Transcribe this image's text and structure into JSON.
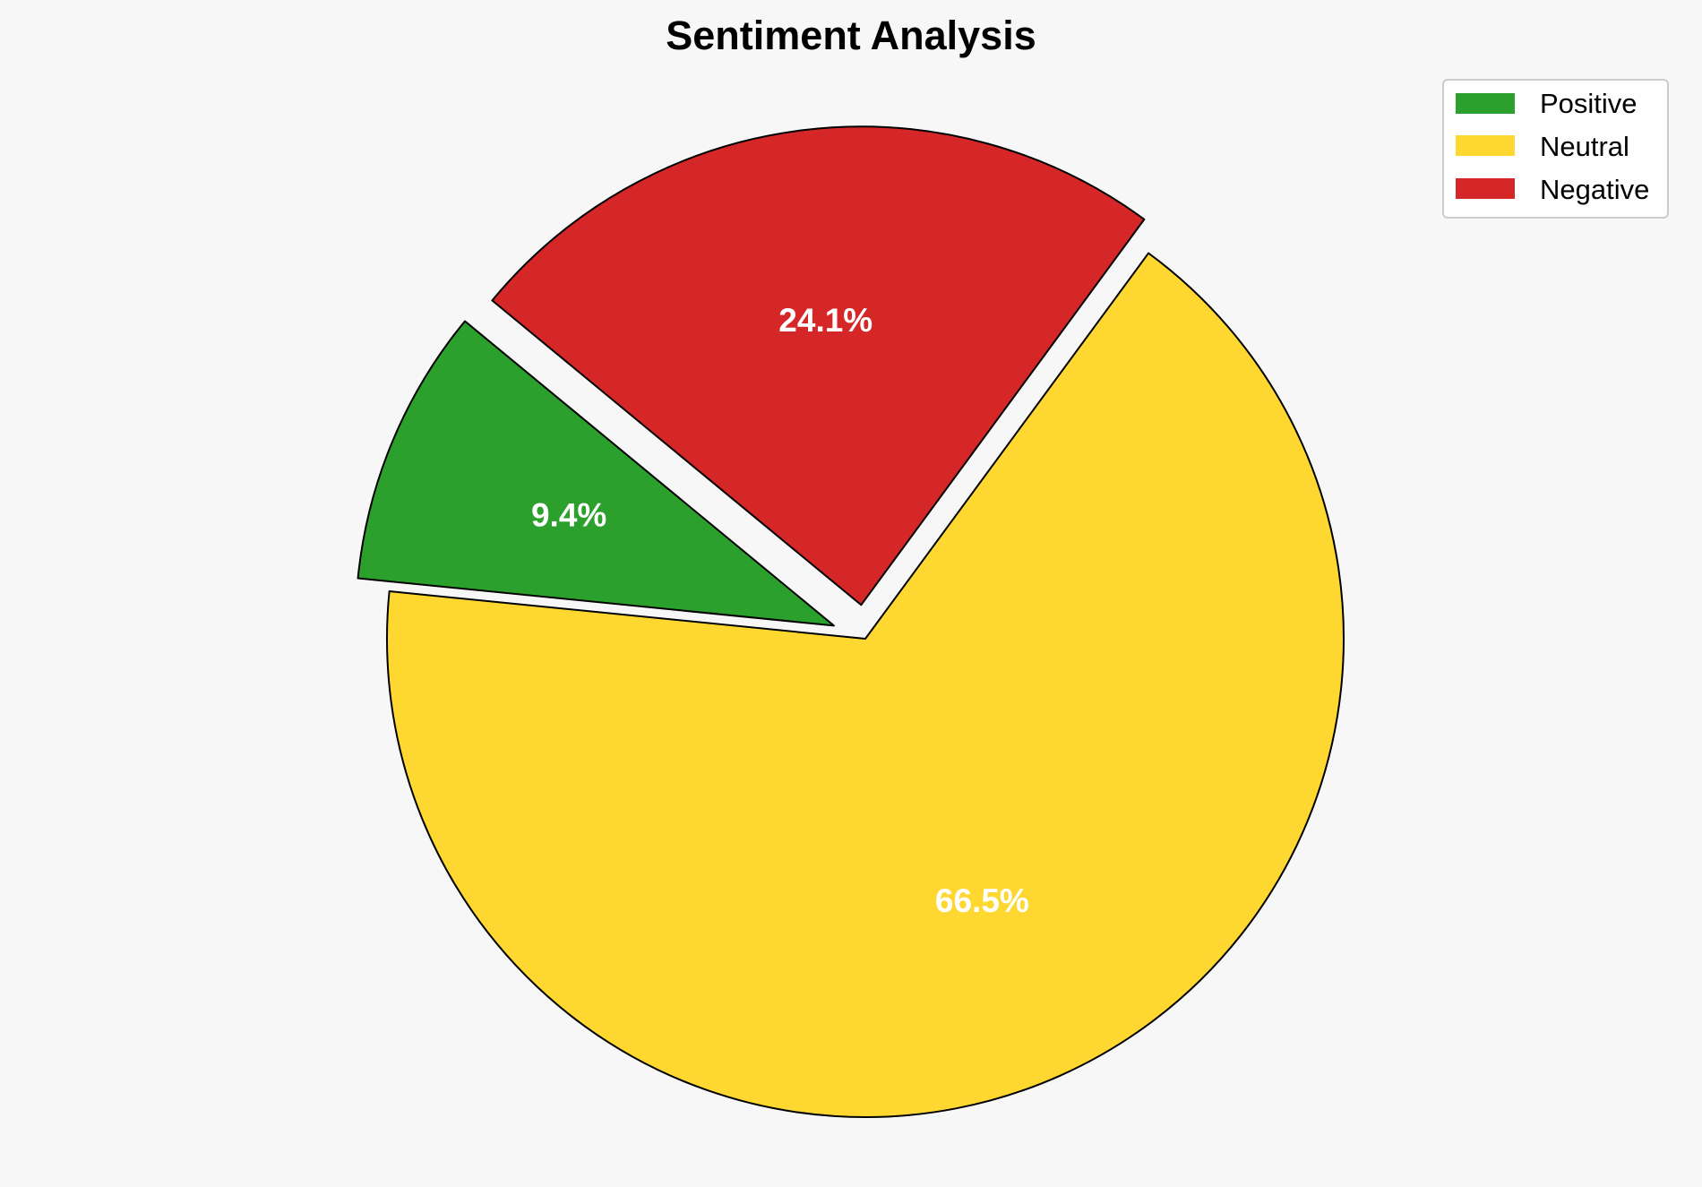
{
  "chart_data": {
    "type": "pie",
    "title": "Sentiment Analysis",
    "categories": [
      "Positive",
      "Neutral",
      "Negative"
    ],
    "values": [
      9.4,
      66.5,
      24.1
    ],
    "labels": [
      "9.4%",
      "66.5%",
      "24.1%"
    ],
    "colors": [
      "#2ca02c",
      "#fed831",
      "#d62728"
    ],
    "exploded": [
      true,
      false,
      true
    ],
    "legend_position": "top-right"
  }
}
